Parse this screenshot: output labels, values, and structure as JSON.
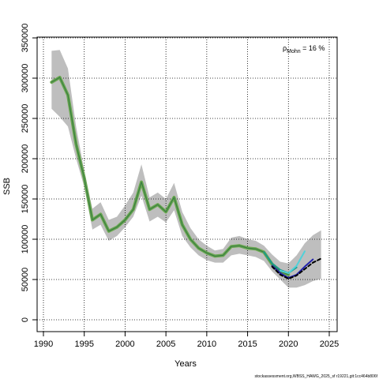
{
  "chart_data": {
    "type": "line",
    "xlabel": "Years",
    "ylabel": "SSB",
    "xlim": [
      1990,
      2025
    ],
    "ylim": [
      0,
      350000
    ],
    "x_ticks": [
      1990,
      1995,
      2000,
      2005,
      2010,
      2015,
      2020,
      2025
    ],
    "y_ticks": [
      0,
      50000,
      100000,
      150000,
      200000,
      250000,
      300000,
      350000
    ],
    "grid": true,
    "annotation": {
      "rho_symbol": "ρ",
      "rho_subscript": "Mohn",
      "rho_value": " = 16 %"
    },
    "footnote": "stockassessment.org,WBSS_HAWG_2025_sf r19221,git:1cc464b806f",
    "colors": {
      "band": "#bebebe",
      "main": "#6aa84f",
      "main_inner": "#3a7d44",
      "peel_2020": "#1a9a8a",
      "peel_2021": "#4fd1d9",
      "peel_2022": "#2222aa",
      "peel_2023": "#000000"
    },
    "confidence_band": {
      "x": [
        1991,
        1992,
        1993,
        1994,
        1995,
        1996,
        1997,
        1998,
        1999,
        2000,
        2001,
        2002,
        2003,
        2004,
        2005,
        2006,
        2007,
        2008,
        2009,
        2010,
        2011,
        2012,
        2013,
        2014,
        2015,
        2016,
        2017,
        2018,
        2019,
        2020,
        2021,
        2022,
        2023,
        2024
      ],
      "lower": [
        262000,
        252000,
        240000,
        200000,
        165000,
        112000,
        118000,
        98000,
        104000,
        115000,
        128000,
        154000,
        122000,
        128000,
        121000,
        136000,
        104000,
        90000,
        80000,
        74000,
        71000,
        71000,
        80000,
        82000,
        80000,
        78000,
        73000,
        60000,
        50000,
        40000,
        40000,
        43000,
        48000,
        51000
      ],
      "upper": [
        334000,
        335000,
        312000,
        240000,
        185000,
        138000,
        146000,
        124000,
        128000,
        142000,
        158000,
        193000,
        152000,
        158000,
        150000,
        170000,
        134000,
        114000,
        100000,
        92000,
        86000,
        88000,
        102000,
        104000,
        100000,
        98000,
        92000,
        81000,
        72000,
        70000,
        80000,
        95000,
        105000,
        111000
      ]
    },
    "series": [
      {
        "key": "main",
        "x": [
          1991,
          1992,
          1993,
          1994,
          1995,
          1996,
          1997,
          1998,
          1999,
          2000,
          2001,
          2002,
          2003,
          2004,
          2005,
          2006,
          2007,
          2008,
          2009,
          2010,
          2011,
          2012,
          2013,
          2014,
          2015,
          2016,
          2017,
          2018,
          2019,
          2020
        ],
        "values": [
          295000,
          301000,
          279000,
          218000,
          176000,
          124000,
          131000,
          110000,
          115000,
          124000,
          137000,
          171000,
          137000,
          143000,
          134000,
          152000,
          118000,
          100000,
          89000,
          83000,
          79000,
          80000,
          91000,
          92000,
          89000,
          88000,
          84000,
          69000,
          60000,
          56000
        ]
      },
      {
        "key": "peel_2020",
        "x": [
          2017,
          2018,
          2019,
          2020,
          2021
        ],
        "values": [
          84000,
          70000,
          62000,
          58000,
          65000
        ]
      },
      {
        "key": "peel_2021",
        "x": [
          2019,
          2020,
          2021,
          2022
        ],
        "values": [
          61000,
          58000,
          67000,
          85000
        ]
      },
      {
        "key": "peel_2022",
        "x": [
          2018,
          2019,
          2020,
          2021,
          2022,
          2023
        ],
        "values": [
          67000,
          58000,
          52000,
          56000,
          66000,
          75000
        ]
      },
      {
        "key": "peel_2023",
        "x": [
          2018,
          2019,
          2020,
          2021,
          2022,
          2023,
          2024
        ],
        "values": [
          66000,
          56000,
          51000,
          55000,
          63000,
          71000,
          76000
        ]
      }
    ]
  }
}
